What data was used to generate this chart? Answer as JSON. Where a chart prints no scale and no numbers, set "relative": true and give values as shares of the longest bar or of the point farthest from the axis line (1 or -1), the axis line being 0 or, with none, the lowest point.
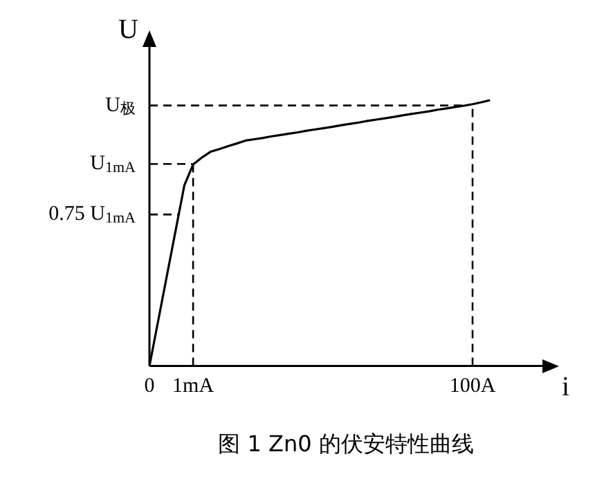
{
  "chart_data": {
    "type": "line",
    "title": "图 1 Zn0 的伏安特性曲线",
    "xlabel": "i",
    "ylabel": "U",
    "relative": true,
    "legend": false,
    "marker": "none",
    "categories": [
      "0",
      null,
      null,
      null,
      null,
      "1mA",
      null,
      null,
      null,
      null,
      null,
      null,
      null,
      null,
      null,
      null,
      null,
      null,
      null,
      null,
      null,
      null,
      null,
      null,
      null,
      null,
      null,
      null,
      null,
      null,
      null,
      null,
      null,
      null,
      null,
      null,
      null,
      "100A",
      null,
      null,
      null,
      null,
      null,
      null,
      null,
      null
    ],
    "series": [
      {
        "color": "#000000",
        "line_style": "solid",
        "values": [
          0,
          0.17,
          0.34,
          0.51,
          0.68,
          0.758,
          0.784,
          0.806,
          0.816,
          0.827,
          0.837,
          0.848,
          0.853,
          0.858,
          0.864,
          0.869,
          0.874,
          0.879,
          0.885,
          0.89,
          0.895,
          0.9,
          0.906,
          0.911,
          0.916,
          0.922,
          0.927,
          0.932,
          0.937,
          0.943,
          0.948,
          0.953,
          0.958,
          0.964,
          0.969,
          0.974,
          0.979,
          0.985,
          0.992,
          1,
          null,
          null,
          null,
          null,
          null,
          null
        ]
      }
    ],
    "ref_lines": [
      {
        "axis": "y",
        "value": 0.98,
        "label": "U$_{极}$",
        "color": "#000000",
        "line_style": "dashed"
      },
      {
        "axis": "y",
        "value": 0.76,
        "label": "U$_{1mA}$",
        "color": "#000000",
        "line_style": "dashed"
      },
      {
        "axis": "y",
        "value": 0.57,
        "label": "0.75 U$_{1mA}$",
        "color": "#000000",
        "line_style": "dashed"
      },
      {
        "axis": "x",
        "value": "1mA",
        "color": "#000000",
        "line_style": "dashed"
      },
      {
        "axis": "x",
        "value": "100A",
        "color": "#000000",
        "line_style": "dashed"
      }
    ]
  }
}
